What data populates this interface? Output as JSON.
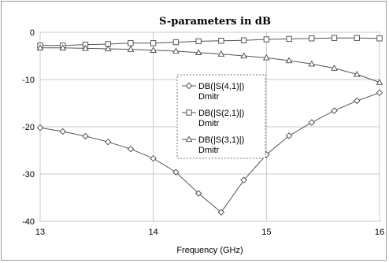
{
  "chart_data": {
    "type": "line",
    "title": "S-parameters in dB",
    "xlabel": "Frequency (GHz)",
    "ylabel": "",
    "xlim": [
      13,
      16
    ],
    "ylim": [
      -40,
      0
    ],
    "x_ticks": [
      "13",
      "14",
      "15",
      "16"
    ],
    "y_ticks": [
      "0",
      "-10",
      "-20",
      "-30",
      "-40"
    ],
    "grid": true,
    "legend_placement": "center",
    "x": [
      13.0,
      13.2,
      13.4,
      13.6,
      13.8,
      14.0,
      14.2,
      14.4,
      14.6,
      14.8,
      15.0,
      15.2,
      15.4,
      15.6,
      15.8,
      16.0
    ],
    "series": [
      {
        "legend_line1": "DB(|S(4,1)|)",
        "legend_line2": "Dmitr",
        "marker": "diamond",
        "values": [
          -20.2,
          -21.0,
          -22.0,
          -23.2,
          -24.7,
          -26.7,
          -29.6,
          -34.1,
          -38.1,
          -31.3,
          -25.9,
          -21.9,
          -19.1,
          -16.6,
          -14.5,
          -12.8
        ]
      },
      {
        "legend_line1": "DB(|S(2,1)|)",
        "legend_line2": "Dmitr",
        "marker": "square",
        "values": [
          -2.8,
          -2.8,
          -2.6,
          -2.5,
          -2.3,
          -2.3,
          -2.1,
          -1.9,
          -1.8,
          -1.7,
          -1.5,
          -1.4,
          -1.3,
          -1.2,
          -1.2,
          -1.3
        ]
      },
      {
        "legend_line1": "DB(|S(3,1)|)",
        "legend_line2": "Dmitr",
        "marker": "triangle",
        "values": [
          -3.3,
          -3.3,
          -3.4,
          -3.5,
          -3.6,
          -3.8,
          -4.0,
          -4.3,
          -4.6,
          -5.0,
          -5.4,
          -6.0,
          -6.7,
          -7.6,
          -8.9,
          -10.6
        ]
      }
    ]
  }
}
